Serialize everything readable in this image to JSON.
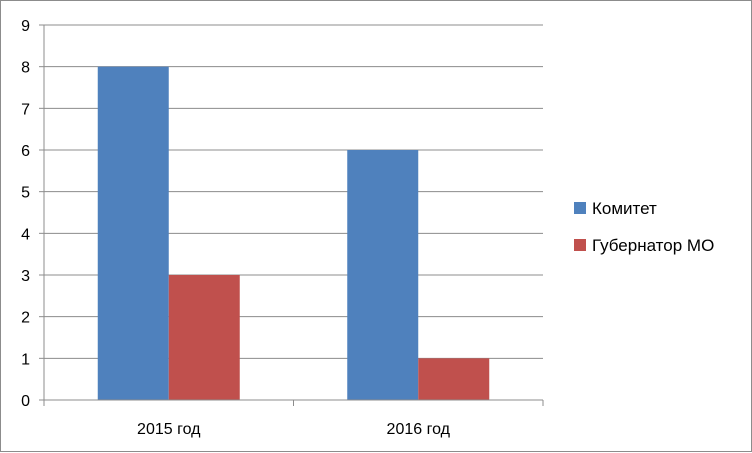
{
  "chart_data": {
    "type": "bar",
    "categories": [
      "2015 год",
      "2016 год"
    ],
    "series": [
      {
        "name": "Комитет",
        "values": [
          8,
          6
        ],
        "color": "#4F81BD"
      },
      {
        "name": "Губернатор МО",
        "values": [
          3,
          1
        ],
        "color": "#C0504D"
      }
    ],
    "ylim": [
      0,
      9
    ],
    "yticks": [
      "0",
      "1",
      "2",
      "3",
      "4",
      "5",
      "6",
      "7",
      "8",
      "9"
    ],
    "grid": true,
    "legend_position": "right"
  }
}
